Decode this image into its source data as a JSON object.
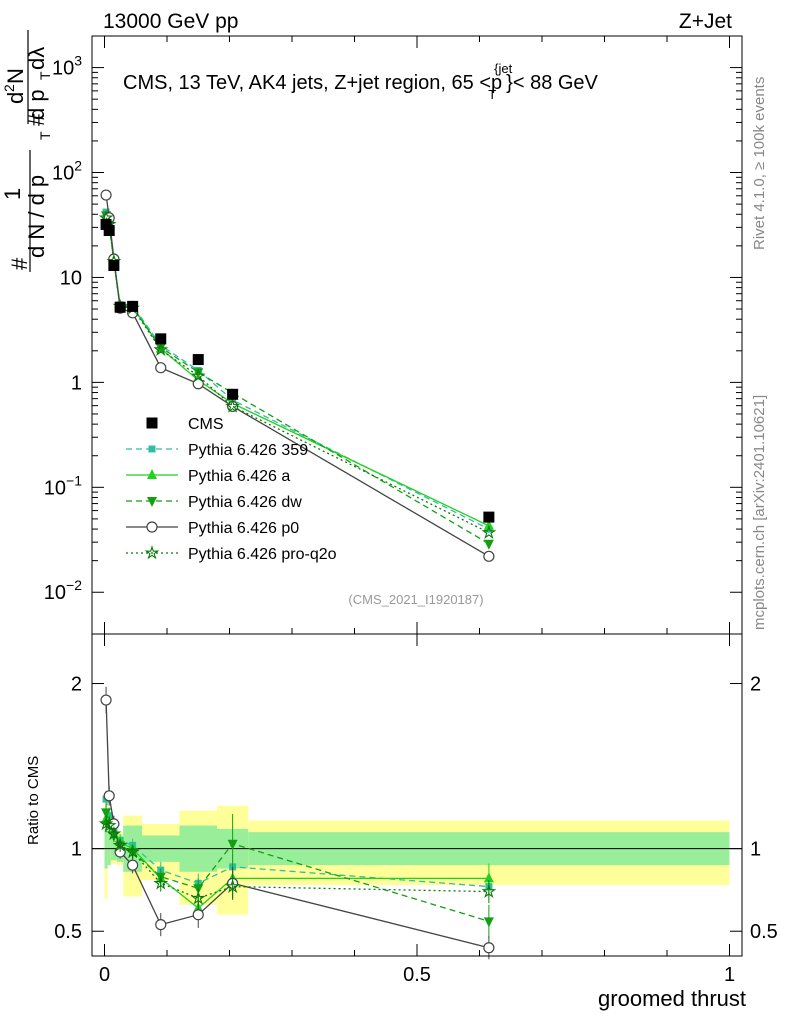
{
  "header": {
    "left": "13000 GeV pp",
    "right": "Z+Jet"
  },
  "side_labels": {
    "rivet": "Rivet 4.1.0, ≥ 100k events",
    "mcplots": "mcplots.cern.ch [arXiv:2401.10621]"
  },
  "chart_data": [
    {
      "type": "line",
      "panel": "main",
      "title": "CMS, 13 TeV, AK4 jets, Z+jet region, 65 <p_T^{jet}< 88 GeV",
      "title_parts": {
        "prefix": "CMS, 13 TeV, AK4 jets, Z+jet region, 65 <p",
        "sup": "{jet",
        "sub": "T",
        "suffix": "}< 88 GeV"
      },
      "ylabel_parts": {
        "hash1": "#",
        "frac_num": "1",
        "frac_den": "d N / d p",
        "sub_T": "T",
        "hash2": "#",
        "d2N_num": "d",
        "d2N_sup": "2",
        "d2N_N": "N",
        "d2N_den": "d p",
        "d2N_den_sub": "T",
        "d2N_lambda": "dλ"
      },
      "xlabel": "groomed thrust",
      "yscale": "log",
      "xlim": [
        -0.02,
        1.02
      ],
      "ylim": [
        0.004,
        2000
      ],
      "yticks": [
        {
          "base": "10",
          "exp": "−2",
          "value": 0.01
        },
        {
          "base": "10",
          "exp": "−1",
          "value": 0.1
        },
        {
          "base": "1",
          "exp": "",
          "value": 1
        },
        {
          "base": "10",
          "exp": "",
          "value": 10
        },
        {
          "base": "10",
          "exp": "2",
          "value": 100
        },
        {
          "base": "10",
          "exp": "3",
          "value": 1000
        }
      ],
      "watermark": "(CMS_2021_I1920187)",
      "bin_edges": [
        0,
        0.005,
        0.01,
        0.02,
        0.03,
        0.06,
        0.12,
        0.18,
        0.23,
        1.0
      ],
      "x": [
        0.0025,
        0.0075,
        0.015,
        0.025,
        0.045,
        0.09,
        0.15,
        0.205,
        0.615
      ],
      "series": [
        {
          "name": "CMS",
          "style": "data",
          "color": "#000000",
          "values": [
            32,
            28,
            13,
            5.2,
            5.3,
            2.6,
            1.65,
            0.77,
            0.052
          ]
        },
        {
          "name": "Pythia 6.426 359",
          "style": "square",
          "dash": "dashed",
          "color": "#2fbf9f",
          "values": [
            42,
            34,
            14.5,
            5.5,
            5.4,
            2.25,
            1.3,
            0.68,
            0.04
          ]
        },
        {
          "name": "Pythia 6.426 a",
          "style": "triangle-up",
          "dash": "solid",
          "color": "#1fd21f",
          "values": [
            38,
            33,
            14.5,
            5.4,
            5.3,
            2.1,
            1.05,
            0.63,
            0.043
          ]
        },
        {
          "name": "Pythia 6.426 dw",
          "style": "triangle-down",
          "dash": "dashed",
          "color": "#12a012",
          "values": [
            39,
            32,
            14,
            5.3,
            5.2,
            2.15,
            1.25,
            0.79,
            0.029
          ]
        },
        {
          "name": "Pythia 6.426 p0",
          "style": "open-circle",
          "dash": "solid",
          "color": "#444444",
          "values": [
            61,
            37,
            15,
            5.1,
            4.6,
            1.38,
            0.97,
            0.59,
            0.022
          ]
        },
        {
          "name": "Pythia 6.426 pro-q2o",
          "style": "open-star",
          "dash": "dotted",
          "color": "#0b7a0b",
          "values": [
            37,
            32,
            14.2,
            5.3,
            5.1,
            2.05,
            1.15,
            0.59,
            0.037
          ]
        }
      ]
    },
    {
      "type": "line",
      "panel": "ratio",
      "ylabel": "Ratio to CMS",
      "xlabel": "groomed thrust",
      "xlim": [
        -0.02,
        1.02
      ],
      "ylim": [
        0.35,
        2.3
      ],
      "yticks": [
        {
          "label": "0.5",
          "value": 0.5
        },
        {
          "label": "1",
          "value": 1
        },
        {
          "label": "2",
          "value": 2
        }
      ],
      "xticks": [
        {
          "label": "0",
          "value": 0
        },
        {
          "label": "0.5",
          "value": 0.5
        },
        {
          "label": "1",
          "value": 1
        }
      ],
      "bin_edges": [
        0,
        0.005,
        0.01,
        0.02,
        0.03,
        0.06,
        0.12,
        0.18,
        0.23,
        1.0
      ],
      "band_stat": [
        [
          0.88,
          1.12
        ],
        [
          0.9,
          1.1
        ],
        [
          0.93,
          1.07
        ],
        [
          0.92,
          1.08
        ],
        [
          0.86,
          1.14
        ],
        [
          0.92,
          1.08
        ],
        [
          0.86,
          1.14
        ],
        [
          0.88,
          1.12
        ],
        [
          0.9,
          1.1
        ]
      ],
      "band_total": [
        [
          0.7,
          1.3
        ],
        [
          0.9,
          1.1
        ],
        [
          0.91,
          1.09
        ],
        [
          0.9,
          1.1
        ],
        [
          0.71,
          1.2
        ],
        [
          0.81,
          1.15
        ],
        [
          0.66,
          1.23
        ],
        [
          0.6,
          1.26
        ],
        [
          0.78,
          1.17
        ]
      ],
      "x": [
        0.0025,
        0.0075,
        0.015,
        0.025,
        0.045,
        0.09,
        0.15,
        0.205,
        0.615
      ],
      "series": [
        {
          "name": "Pythia 6.426 359",
          "values": [
            1.3,
            1.2,
            1.11,
            1.05,
            1.02,
            0.87,
            0.79,
            0.89,
            0.77
          ],
          "err": [
            0.05,
            0.05,
            0.04,
            0.04,
            0.04,
            0.05,
            0.06,
            0.08,
            0.06
          ]
        },
        {
          "name": "Pythia 6.426 a",
          "values": [
            1.18,
            1.17,
            1.11,
            1.04,
            1.0,
            0.82,
            0.64,
            0.82,
            0.82
          ],
          "err": [
            0.05,
            0.05,
            0.04,
            0.04,
            0.04,
            0.05,
            0.06,
            0.08,
            0.09
          ]
        },
        {
          "name": "Pythia 6.426 dw",
          "values": [
            1.22,
            1.15,
            1.08,
            1.02,
            0.98,
            0.83,
            0.76,
            1.03,
            0.56
          ],
          "err": [
            0.05,
            0.05,
            0.04,
            0.04,
            0.04,
            0.05,
            0.06,
            0.18,
            0.1
          ]
        },
        {
          "name": "Pythia 6.426 p0",
          "values": [
            1.9,
            1.32,
            1.15,
            0.98,
            0.9,
            0.54,
            0.6,
            0.79,
            0.4
          ],
          "err": [
            0.08,
            0.06,
            0.05,
            0.04,
            0.05,
            0.07,
            0.08,
            0.1,
            0.07
          ]
        },
        {
          "name": "Pythia 6.426 pro-q2o",
          "values": [
            1.15,
            1.14,
            1.09,
            1.02,
            0.98,
            0.79,
            0.7,
            0.77,
            0.74
          ],
          "err": [
            0.05,
            0.05,
            0.04,
            0.04,
            0.04,
            0.05,
            0.06,
            0.07,
            0.07
          ]
        }
      ]
    }
  ]
}
